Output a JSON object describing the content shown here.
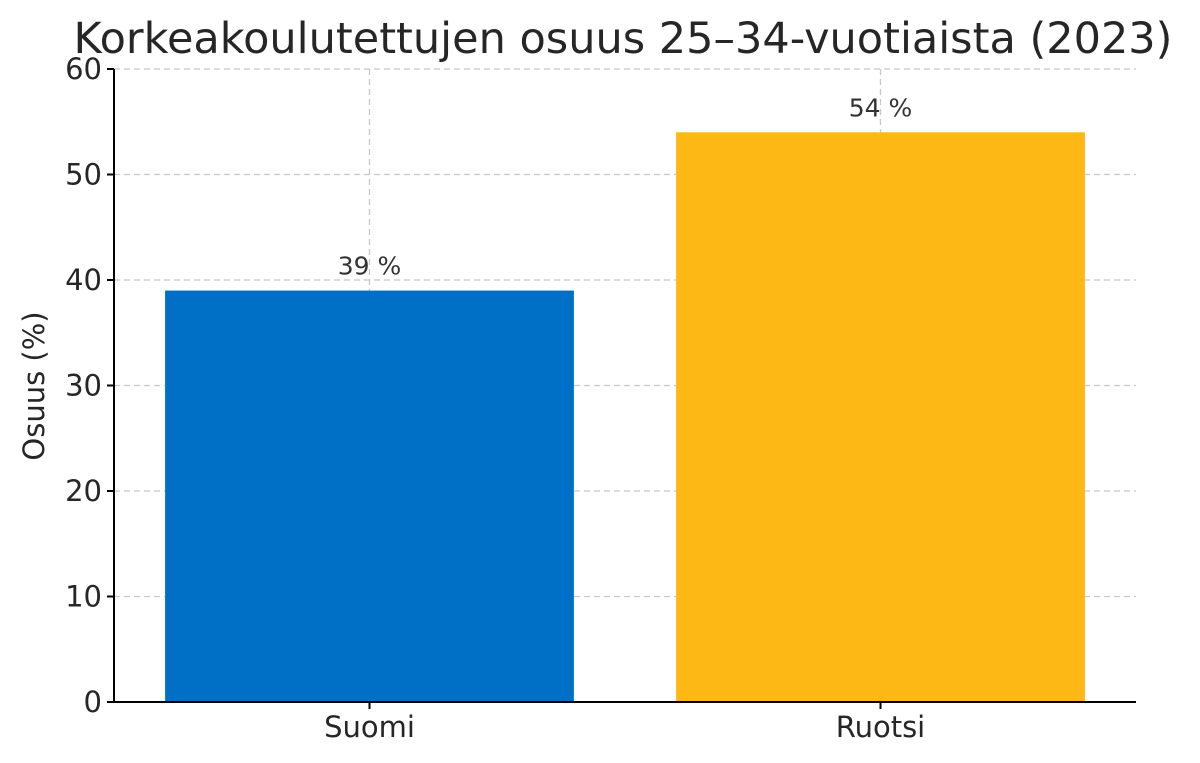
{
  "chart_data": {
    "type": "bar",
    "title": "Korkeakoulutettujen osuus 25–34-vuotiaista (2023)",
    "xlabel": "",
    "ylabel": "Osuus (%)",
    "categories": [
      "Suomi",
      "Ruotsi"
    ],
    "values": [
      39,
      54
    ],
    "data_labels": [
      "39 %",
      "54 %"
    ],
    "colors": [
      "#0070C7",
      "#FDB815"
    ],
    "ylim": [
      0,
      60
    ],
    "yticks": [
      0,
      10,
      20,
      30,
      40,
      50,
      60
    ],
    "grid": true,
    "legend": "none"
  }
}
